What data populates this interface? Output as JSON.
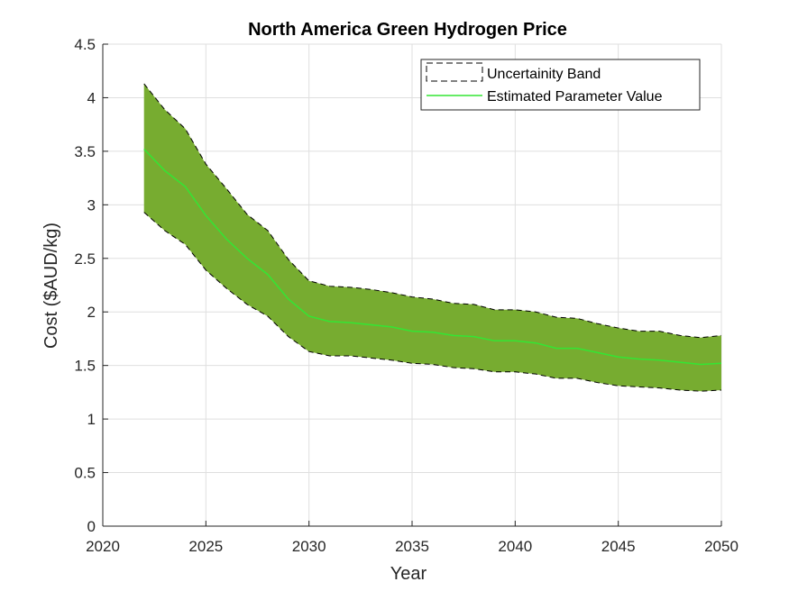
{
  "chart_data": {
    "type": "area",
    "title": "North America Green Hydrogen Price",
    "xlabel": "Year",
    "ylabel": "Cost ($AUD/kg)",
    "xlim": [
      2020,
      2050
    ],
    "ylim": [
      0,
      4.5
    ],
    "xticks": [
      2020,
      2025,
      2030,
      2035,
      2040,
      2045,
      2050
    ],
    "yticks": [
      0,
      0.5,
      1,
      1.5,
      2,
      2.5,
      3,
      3.5,
      4,
      4.5
    ],
    "grid": true,
    "legend_position": "top-right",
    "x": [
      2022,
      2023,
      2024,
      2025,
      2026,
      2027,
      2028,
      2029,
      2030,
      2031,
      2032,
      2033,
      2034,
      2035,
      2036,
      2037,
      2038,
      2039,
      2040,
      2041,
      2042,
      2043,
      2044,
      2045,
      2046,
      2047,
      2048,
      2049,
      2050
    ],
    "series": [
      {
        "name": "Estimated Parameter Value",
        "color": "#33e633",
        "values": [
          3.52,
          3.32,
          3.17,
          2.9,
          2.68,
          2.5,
          2.35,
          2.12,
          1.96,
          1.91,
          1.9,
          1.88,
          1.86,
          1.82,
          1.81,
          1.78,
          1.77,
          1.73,
          1.73,
          1.71,
          1.66,
          1.66,
          1.62,
          1.58,
          1.56,
          1.55,
          1.53,
          1.51,
          1.52
        ]
      }
    ],
    "band": {
      "name": "Uncertainity Band",
      "fill_color": "#77ac30",
      "edge_color": "#000000",
      "upper": [
        4.13,
        3.89,
        3.71,
        3.38,
        3.15,
        2.91,
        2.76,
        2.49,
        2.29,
        2.24,
        2.23,
        2.21,
        2.18,
        2.14,
        2.12,
        2.08,
        2.07,
        2.02,
        2.02,
        2.0,
        1.95,
        1.94,
        1.89,
        1.85,
        1.82,
        1.82,
        1.78,
        1.76,
        1.78
      ],
      "lower": [
        2.93,
        2.76,
        2.63,
        2.39,
        2.22,
        2.07,
        1.96,
        1.77,
        1.63,
        1.59,
        1.59,
        1.57,
        1.55,
        1.52,
        1.51,
        1.48,
        1.47,
        1.44,
        1.44,
        1.42,
        1.38,
        1.38,
        1.34,
        1.31,
        1.3,
        1.29,
        1.27,
        1.26,
        1.27
      ]
    }
  }
}
